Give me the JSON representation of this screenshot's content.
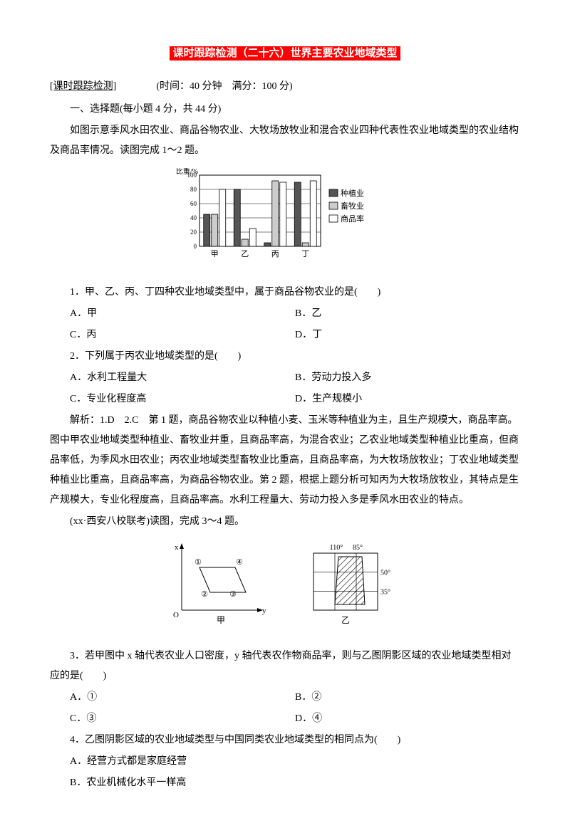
{
  "title": "课时跟踪检测（二十六）世界主要农业地域类型",
  "meta": {
    "prefix": "[课时跟踪检测]",
    "info": "(时间：40 分钟　满分：100 分)"
  },
  "section1": "一、选择题(每小题 4 分，共 44 分)",
  "intro1": "如图示意季风水田农业、商品谷物农业、大牧场放牧业和混合农业四种代表性农业地域类型的农业结构及商品率情况。读图完成 1～2 题。",
  "chart": {
    "ylabel": "比重/%",
    "ymax": 100,
    "ytick_step": 20,
    "categories": [
      "甲",
      "乙",
      "丙",
      "丁"
    ],
    "legend": [
      {
        "label": "种植业",
        "fill": "#555555"
      },
      {
        "label": "畜牧业",
        "fill": "#cccccc"
      },
      {
        "label": "商品率",
        "fill": "#ffffff"
      }
    ],
    "series": {
      "甲": [
        45,
        45,
        80
      ],
      "乙": [
        80,
        10,
        25
      ],
      "丙": [
        5,
        92,
        90
      ],
      "丁": [
        90,
        5,
        92
      ]
    },
    "bar_border": "#000000",
    "grid_color": "#000000",
    "bg": "#ffffff"
  },
  "q1": {
    "stem": "1．甲、乙、丙、丁四种农业地域类型中，属于商品谷物农业的是(　　)",
    "opts": {
      "A": "A．甲",
      "B": "B．乙",
      "C": "C．丙",
      "D": "D．丁"
    }
  },
  "q2": {
    "stem": "2．下列属于丙农业地域类型的是(　　)",
    "opts": {
      "A": "A．水利工程量大",
      "B": "B．劳动力投入多",
      "C": "C．专业化程度高",
      "D": "D．生产规模小"
    }
  },
  "explain1": "解析：1.D　2.C　第 1 题，商品谷物农业以种植小麦、玉米等种植业为主，且生产规模大，商品率高。图中甲农业地域类型种植业、畜牧业并重，且商品率高，为混合农业；乙农业地域类型种植业比重高，但商品率低，为季风水田农业；丙农业地域类型畜牧业比重高，且商品率高，为大牧场放牧业；丁农业地域类型种植业比重高，且商品率高，为商品谷物农业。第 2 题，根据上题分析可知丙为大牧场放牧业，其特点是生产规模大，专业化程度高，且商品率高。水利工程量大、劳动力投入多是季风水田农业的特点。",
  "intro2": "(xx·西安八校联考)读图，完成 3～4 题。",
  "diagram": {
    "left": {
      "xlabel": "y",
      "ylabel": "x",
      "origin": "O",
      "caption": "甲",
      "nodes": [
        "①",
        "②",
        "③",
        "④"
      ],
      "stroke": "#000000"
    },
    "right": {
      "lon_labels": [
        "110°",
        "85°"
      ],
      "lat_labels": [
        "50°",
        "35°"
      ],
      "caption": "乙",
      "hatch_stroke": "#000000",
      "stroke": "#000000"
    }
  },
  "q3": {
    "stem": "3．若甲图中 x 轴代表农业人口密度，y 轴代表农作物商品率，则与乙图阴影区域的农业地域类型相对应的是(　　)",
    "opts": {
      "A": "A．①",
      "B": "B．②",
      "C": "C．③",
      "D": "D．④"
    }
  },
  "q4": {
    "stem": "4．乙图阴影区域的农业地域类型与中国同类农业地域类型的相同点为(　　)",
    "opts": {
      "A": "A．经营方式都是家庭经营",
      "B": "B．农业机械化水平一样高"
    }
  }
}
